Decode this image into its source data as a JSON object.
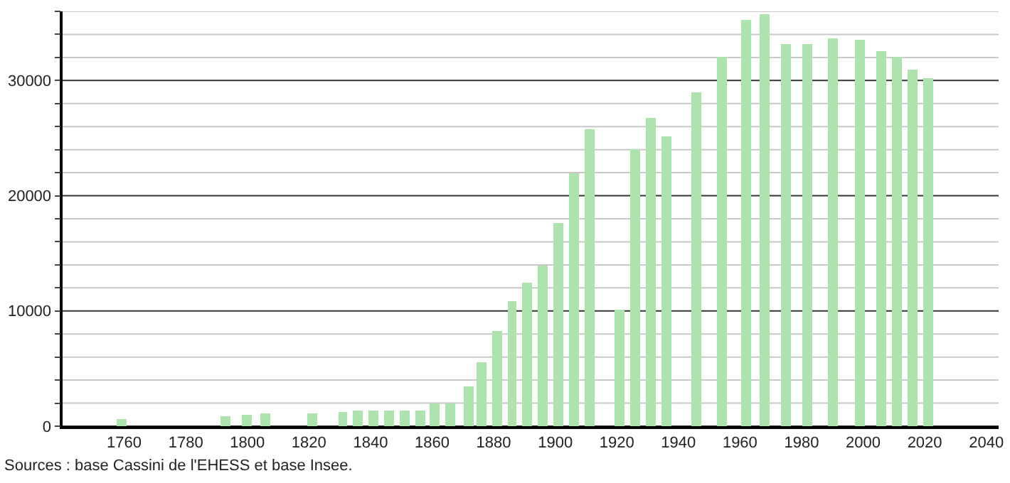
{
  "chart_data": {
    "type": "bar",
    "x": [
      1759,
      1793,
      1800,
      1806,
      1821,
      1831,
      1836,
      1841,
      1846,
      1851,
      1856,
      1861,
      1866,
      1872,
      1876,
      1881,
      1886,
      1891,
      1896,
      1901,
      1906,
      1911,
      1921,
      1926,
      1931,
      1936,
      1946,
      1954,
      1962,
      1968,
      1975,
      1982,
      1990,
      1999,
      2006,
      2011,
      2016,
      2021
    ],
    "values": [
      600,
      900,
      1000,
      1100,
      1100,
      1200,
      1300,
      1400,
      1400,
      1400,
      1400,
      2000,
      2000,
      3500,
      5500,
      8200,
      10800,
      12400,
      13900,
      17600,
      22000,
      25800,
      10100,
      24000,
      26800,
      25200,
      29000,
      32000,
      35200,
      35800,
      33200,
      33200,
      33600,
      33500,
      32600,
      32000,
      31000,
      30200
    ],
    "color": "#ade3ad",
    "xlim": [
      1740,
      2044
    ],
    "xticks": [
      1760,
      1780,
      1800,
      1820,
      1840,
      1860,
      1880,
      1900,
      1920,
      1940,
      1960,
      1980,
      2000,
      2020,
      2040
    ],
    "ylim": [
      0,
      36000
    ],
    "yticks": [
      0,
      {
        "value": 2000,
        "label": null
      },
      {
        "value": 4000,
        "label": null
      },
      {
        "value": 6000,
        "label": null
      },
      {
        "value": 8000,
        "label": null
      },
      10000,
      {
        "value": 12000,
        "label": null
      },
      {
        "value": 14000,
        "label": null
      },
      {
        "value": 16000,
        "label": null
      },
      {
        "value": 18000,
        "label": null
      },
      20000,
      {
        "value": 22000,
        "label": null
      },
      {
        "value": 24000,
        "label": null
      },
      {
        "value": 26000,
        "label": null
      },
      {
        "value": 28000,
        "label": null
      },
      30000,
      {
        "value": 32000,
        "label": null
      },
      {
        "value": 34000,
        "label": null
      },
      {
        "value": 36000,
        "label": null
      }
    ],
    "grid": "y",
    "annotations": [
      "Sources : base Cassini de l'EHESS et base Insee."
    ]
  }
}
